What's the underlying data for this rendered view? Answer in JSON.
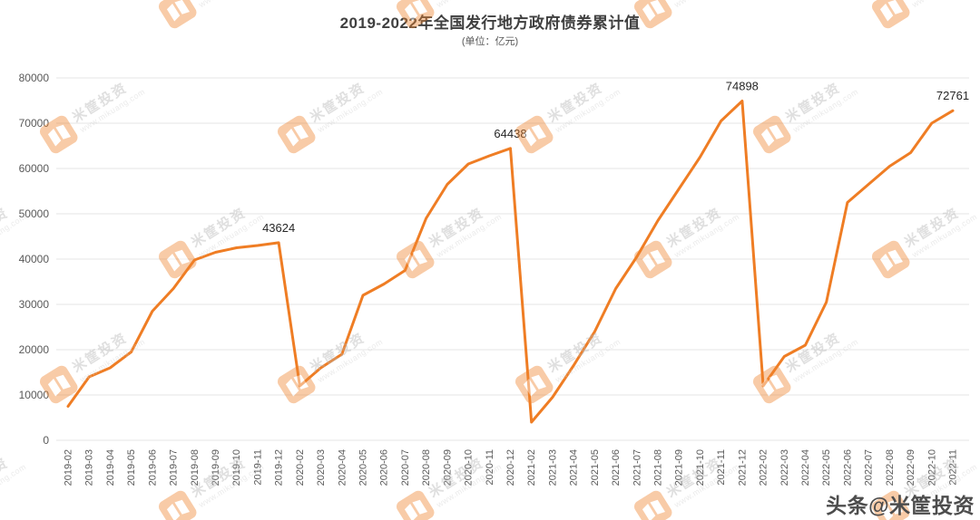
{
  "chart_data": {
    "type": "line",
    "title": "2019-2022年全国发行地方政府债券累计值",
    "subtitle": "(单位：亿元)",
    "xlabel": "",
    "ylabel": "",
    "ylim": [
      0,
      80000
    ],
    "yticks": [
      0,
      10000,
      20000,
      30000,
      40000,
      50000,
      60000,
      70000,
      80000
    ],
    "grid": true,
    "legend": "none",
    "line_color": "#EF7D24",
    "categories": [
      "2019-02",
      "2019-03",
      "2019-04",
      "2019-05",
      "2019-06",
      "2019-07",
      "2019-08",
      "2019-09",
      "2019-10",
      "2019-11",
      "2019-12",
      "2020-02",
      "2020-03",
      "2020-04",
      "2020-05",
      "2020-06",
      "2020-07",
      "2020-08",
      "2020-09",
      "2020-10",
      "2020-11",
      "2020-12",
      "2021-02",
      "2021-03",
      "2021-04",
      "2021-05",
      "2021-06",
      "2021-07",
      "2021-08",
      "2021-09",
      "2021-10",
      "2021-11",
      "2021-12",
      "2022-02",
      "2022-03",
      "2022-04",
      "2022-05",
      "2022-06",
      "2022-07",
      "2022-08",
      "2022-09",
      "2022-10",
      "2022-11"
    ],
    "values": [
      7500,
      14000,
      16000,
      19500,
      28500,
      33500,
      39800,
      41500,
      42500,
      43000,
      43624,
      12000,
      16000,
      19000,
      32000,
      34500,
      37500,
      49000,
      56500,
      61000,
      62800,
      64438,
      4000,
      9500,
      16500,
      24000,
      33500,
      40500,
      48500,
      55500,
      62500,
      70500,
      74898,
      12000,
      18500,
      21000,
      30500,
      52500,
      56500,
      60500,
      63500,
      70000,
      72761
    ],
    "annotations": [
      {
        "category": "2019-12",
        "index": 10,
        "label": "43624"
      },
      {
        "category": "2020-12",
        "index": 21,
        "label": "64438"
      },
      {
        "category": "2021-12",
        "index": 32,
        "label": "74898"
      },
      {
        "category": "2022-11",
        "index": 42,
        "label": "72761"
      }
    ]
  },
  "watermark": {
    "brand": "米筐投资",
    "url": "www.mikuang.com"
  },
  "footer": {
    "credit": "头条@米筐投资"
  }
}
